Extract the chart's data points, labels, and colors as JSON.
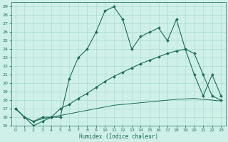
{
  "xlabel": "Humidex (Indice chaleur)",
  "bg_color": "#cff0e8",
  "line_color": "#1a6b5a",
  "grid_color": "#a8ddd0",
  "xlim": [
    -0.5,
    23.5
  ],
  "ylim": [
    15,
    29.5
  ],
  "yticks": [
    15,
    16,
    17,
    18,
    19,
    20,
    21,
    22,
    23,
    24,
    25,
    26,
    27,
    28,
    29
  ],
  "xticks": [
    0,
    1,
    2,
    3,
    4,
    5,
    6,
    7,
    8,
    9,
    10,
    11,
    12,
    13,
    14,
    15,
    16,
    17,
    18,
    19,
    20,
    21,
    22,
    23
  ],
  "curve1_x": [
    0,
    1,
    2,
    3,
    4,
    5,
    6,
    7,
    8,
    9,
    10,
    11,
    12,
    13,
    14,
    15,
    16,
    17,
    18,
    19,
    20,
    21,
    22,
    23
  ],
  "curve1_y": [
    17.0,
    16.0,
    15.0,
    15.5,
    16.0,
    16.0,
    20.5,
    23.0,
    24.0,
    26.0,
    28.5,
    29.0,
    27.5,
    24.0,
    25.5,
    26.0,
    26.5,
    25.0,
    27.5,
    24.0,
    21.0,
    18.5,
    21.0,
    18.5
  ],
  "curve2_x": [
    0,
    1,
    2,
    3,
    4,
    5,
    6,
    7,
    8,
    9,
    10,
    11,
    12,
    13,
    14,
    15,
    16,
    17,
    18,
    19,
    20,
    21,
    22,
    23
  ],
  "curve2_y": [
    17.0,
    16.0,
    15.5,
    16.0,
    16.0,
    17.0,
    17.5,
    18.2,
    18.8,
    19.5,
    20.2,
    20.8,
    21.3,
    21.8,
    22.3,
    22.7,
    23.1,
    23.5,
    23.8,
    24.0,
    23.5,
    21.0,
    18.5,
    18.0
  ],
  "curve3_x": [
    0,
    1,
    2,
    3,
    4,
    5,
    6,
    7,
    8,
    9,
    10,
    11,
    12,
    13,
    14,
    15,
    16,
    17,
    18,
    19,
    20,
    21,
    22,
    23
  ],
  "curve3_y": [
    17.0,
    16.0,
    15.5,
    15.8,
    16.0,
    16.2,
    16.4,
    16.6,
    16.8,
    17.0,
    17.2,
    17.4,
    17.5,
    17.6,
    17.7,
    17.8,
    17.9,
    18.0,
    18.1,
    18.15,
    18.2,
    18.1,
    18.0,
    17.9
  ]
}
